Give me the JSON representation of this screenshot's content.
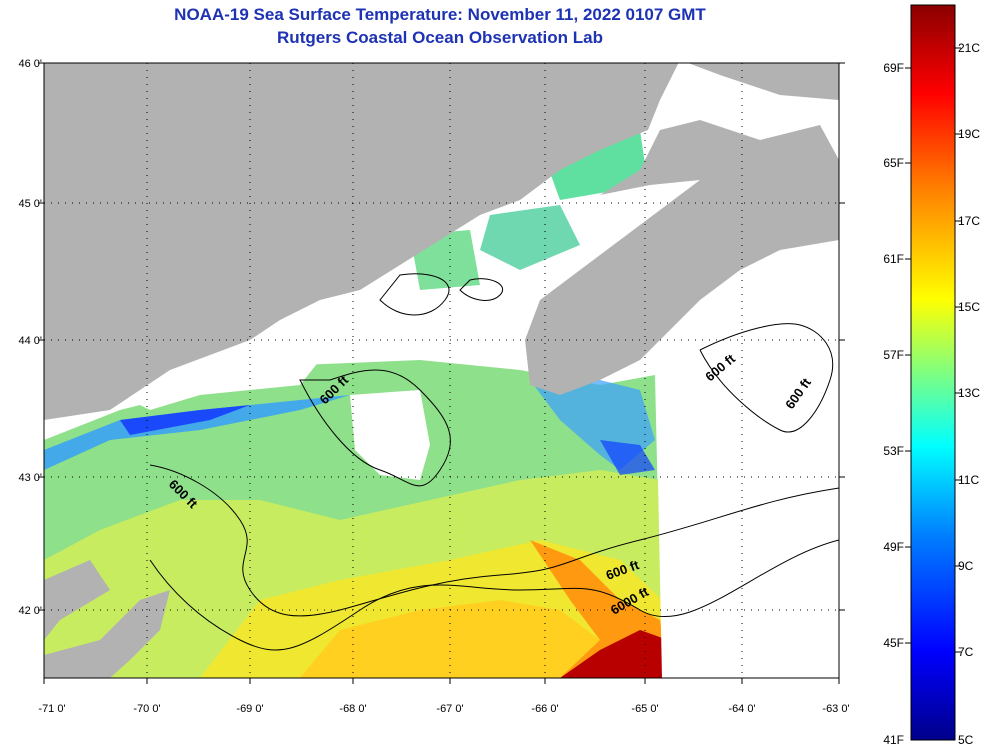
{
  "header": {
    "title": "NOAA-19 Sea Surface Temperature:  November 11, 2022 0107 GMT",
    "subtitle": "Rutgers Coastal Ocean Observation Lab"
  },
  "map": {
    "lat_labels": [
      "46 0'",
      "45 0'",
      "44 0'",
      "43 0'",
      "42 0'"
    ],
    "lon_labels": [
      "-71 0'",
      "-70 0'",
      "-69 0'",
      "-68 0'",
      "-67 0'",
      "-66 0'",
      "-65 0'",
      "-64 0'",
      "-63 0'"
    ],
    "contour_labels": [
      "600 ft",
      "600 ft",
      "600 ft",
      "600 ft",
      "600 ft",
      "6000 ft"
    ]
  },
  "colorbar": {
    "fahrenheit_labels": [
      "69F",
      "65F",
      "61F",
      "57F",
      "53F",
      "49F",
      "45F",
      "41F"
    ],
    "celsius_labels": [
      "21C",
      "19C",
      "17C",
      "15C",
      "13C",
      "11C",
      "9C",
      "7C",
      "5C"
    ],
    "colors": [
      "#00008a",
      "#0000ff",
      "#0080ff",
      "#00ffff",
      "#80ff80",
      "#ffff00",
      "#ff8000",
      "#ff0000",
      "#8a0000"
    ]
  }
}
